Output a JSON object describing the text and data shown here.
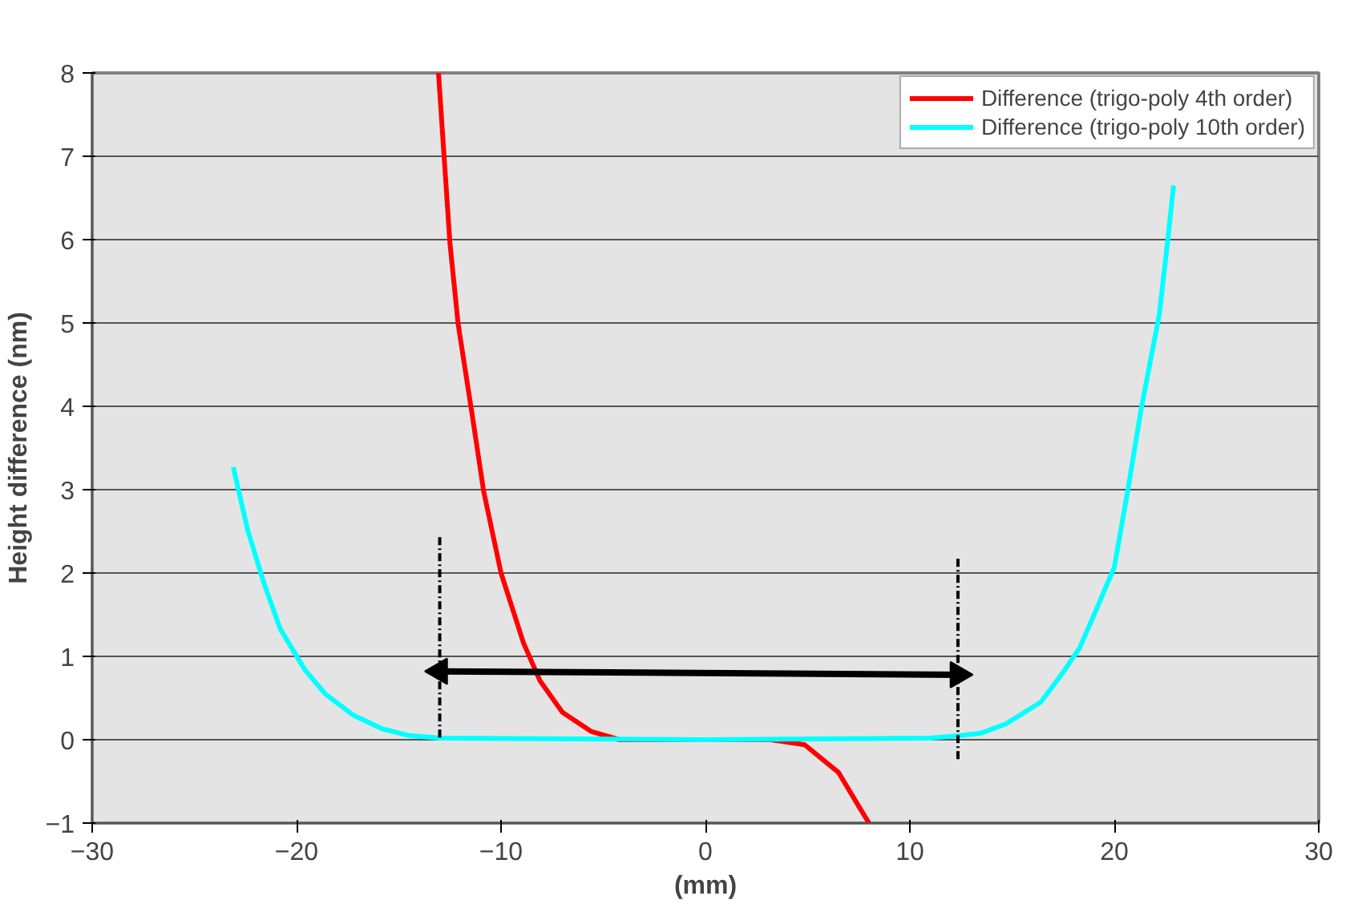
{
  "chart_data": {
    "type": "line",
    "xlabel": "(mm)",
    "ylabel": "Height difference (nm)",
    "xlim": [
      -30,
      30
    ],
    "xticks": [
      -30,
      -20,
      -10,
      0,
      10,
      20,
      30
    ],
    "ylim": [
      -1,
      8
    ],
    "yticks": [
      -1,
      0,
      1,
      2,
      3,
      4,
      5,
      6,
      7,
      8
    ],
    "grid": "y",
    "legend": "top right",
    "line_style": "solid",
    "series": [
      {
        "name": "Difference (trigo-poly 4th order)",
        "color": "#ff0000",
        "x": [
          -13.06,
          -12.8,
          -12.5,
          -12.1,
          -11.4,
          -10.85,
          -10.0,
          -8.9,
          -8.1,
          -7.0,
          -5.6,
          -4.2,
          0,
          3.2,
          4.85,
          6.5,
          7.6,
          8.0
        ],
        "values": [
          8,
          7.05,
          5.96,
          4.99,
          3.88,
          2.98,
          2.0,
          1.16,
          0.71,
          0.33,
          0.1,
          0.0,
          0.0,
          0.0,
          -0.06,
          -0.39,
          -0.84,
          -1
        ]
      },
      {
        "name": "Difference (trigo-poly 10th order)",
        "color": "#00ffff",
        "x": [
          -23.1,
          -22.4,
          -21.6,
          -20.8,
          -19.6,
          -18.6,
          -17.2,
          -15.8,
          -14.5,
          -13,
          0,
          11,
          12.5,
          13.5,
          14.7,
          16.4,
          17.5,
          18.3,
          19.1,
          20.0,
          20.7,
          21.3,
          22.2,
          22.6,
          22.9
        ],
        "values": [
          3.27,
          2.52,
          1.88,
          1.33,
          0.84,
          0.55,
          0.29,
          0.13,
          0.05,
          0.02,
          0.0,
          0.02,
          0.05,
          0.08,
          0.19,
          0.45,
          0.81,
          1.1,
          1.55,
          2.07,
          3.05,
          3.95,
          5.1,
          5.96,
          6.65
        ]
      },
      {
        "color": "#000000",
        "line_style": "dashed",
        "x": [
          -13,
          -13
        ],
        "values": [
          2.43,
          0
        ]
      },
      {
        "color": "#000000",
        "line_style": "dashed",
        "x": [
          12.35,
          12.35
        ],
        "values": [
          2.17,
          -0.25
        ]
      },
      {
        "color": "#000000",
        "marker": "triangle",
        "x": [
          -13,
          12.35
        ],
        "values": [
          0.82,
          0.78
        ]
      }
    ]
  }
}
